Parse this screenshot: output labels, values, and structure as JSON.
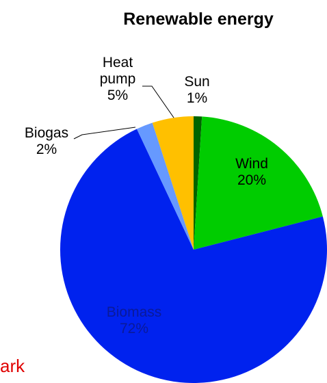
{
  "chart_data": {
    "type": "pie",
    "title": "Renewable energy",
    "categories": [
      "Sun",
      "Wind",
      "Biomass",
      "Biogas",
      "Heat pump"
    ],
    "values": [
      1,
      20,
      72,
      2,
      5
    ],
    "value_labels": [
      "1%",
      "20%",
      "72%",
      "2%",
      "5%"
    ],
    "colors": [
      "#006400",
      "#00cc00",
      "#0022ee",
      "#6699ff",
      "#ffc000"
    ],
    "annotation": "ark"
  }
}
